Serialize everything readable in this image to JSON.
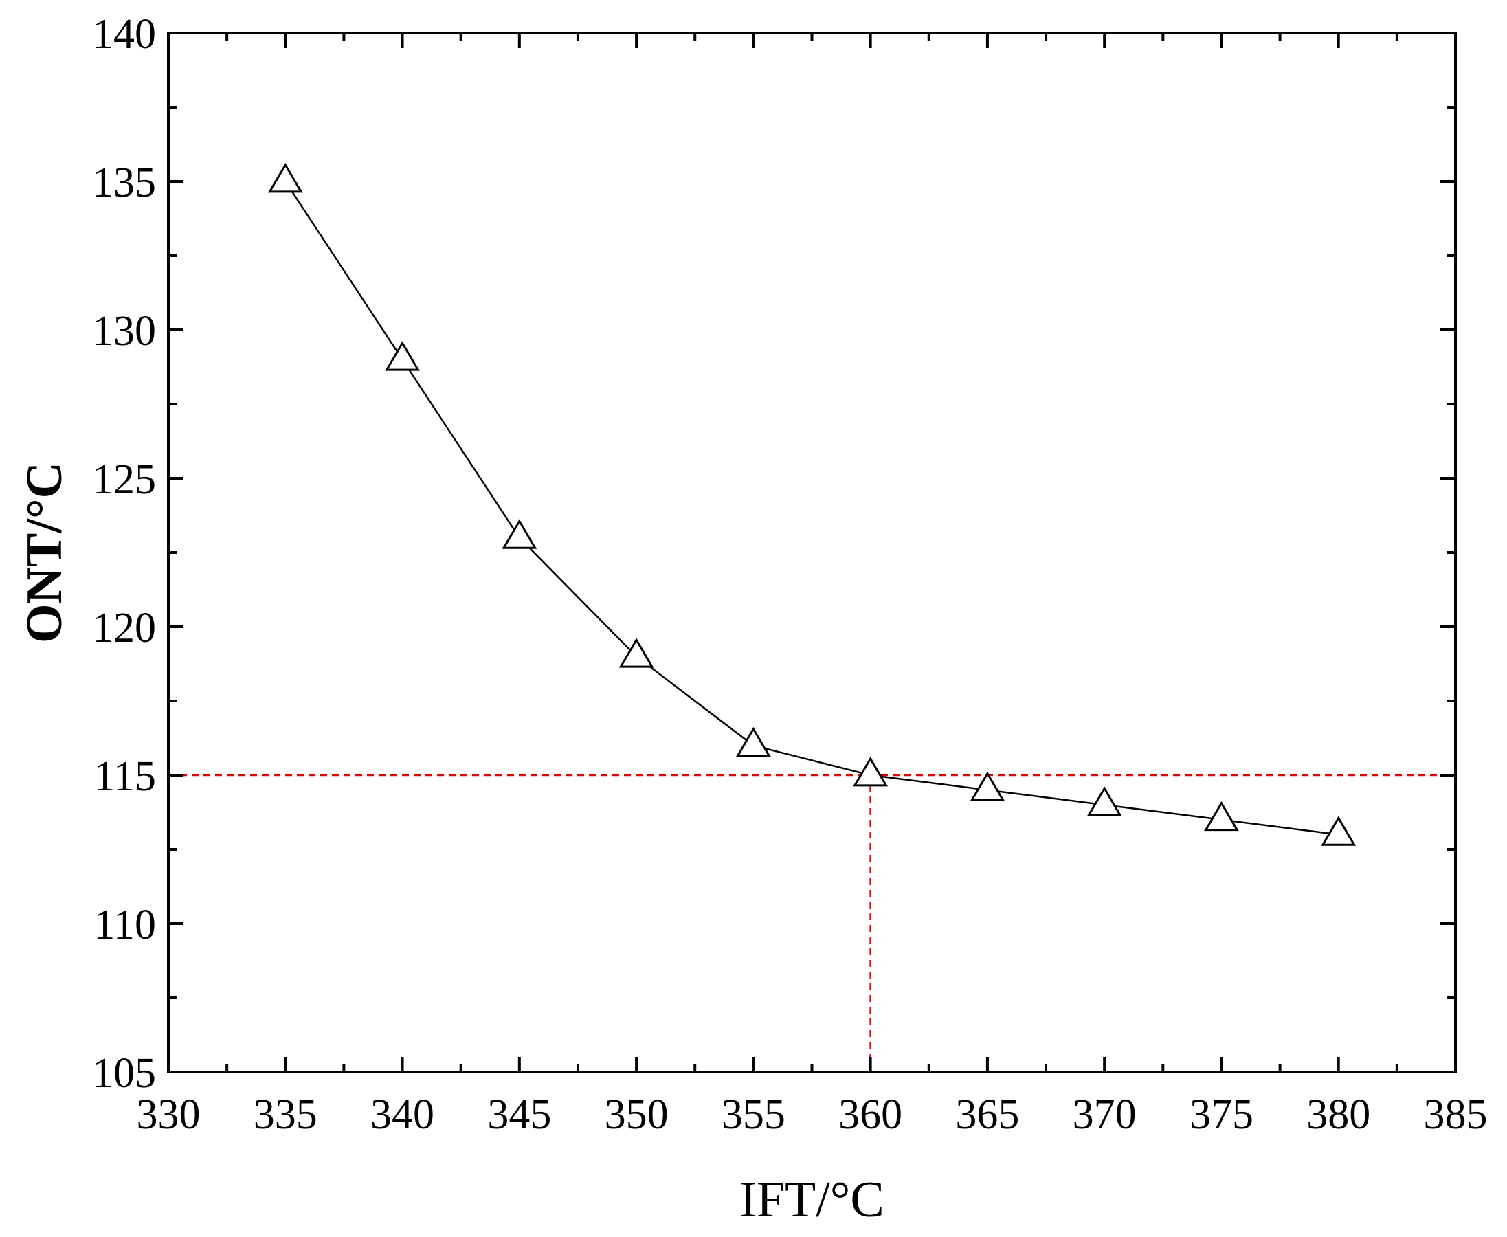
{
  "chart_data": {
    "type": "line",
    "title": "",
    "xlabel": "IFT/°C",
    "ylabel": "ONT/°C",
    "xlim": [
      330,
      385
    ],
    "ylim": [
      105,
      140
    ],
    "xticks": [
      330,
      335,
      340,
      345,
      350,
      355,
      360,
      365,
      370,
      375,
      380,
      385
    ],
    "yticks": [
      105,
      110,
      115,
      120,
      125,
      130,
      135,
      140
    ],
    "grid": false,
    "series": [
      {
        "marker": "open-triangle",
        "color": "#000000",
        "x": [
          335,
          340,
          345,
          350,
          355,
          360,
          365,
          370,
          375,
          380
        ],
        "y": [
          135,
          129,
          123,
          119,
          116,
          115,
          114.5,
          114,
          113.5,
          113
        ]
      }
    ],
    "reference_lines": [
      {
        "orientation": "horizontal",
        "value": 115,
        "color": "#e00000",
        "style": "dashed"
      },
      {
        "orientation": "vertical",
        "value": 360,
        "color": "#e00000",
        "style": "dashed",
        "range_to": 115
      }
    ]
  }
}
